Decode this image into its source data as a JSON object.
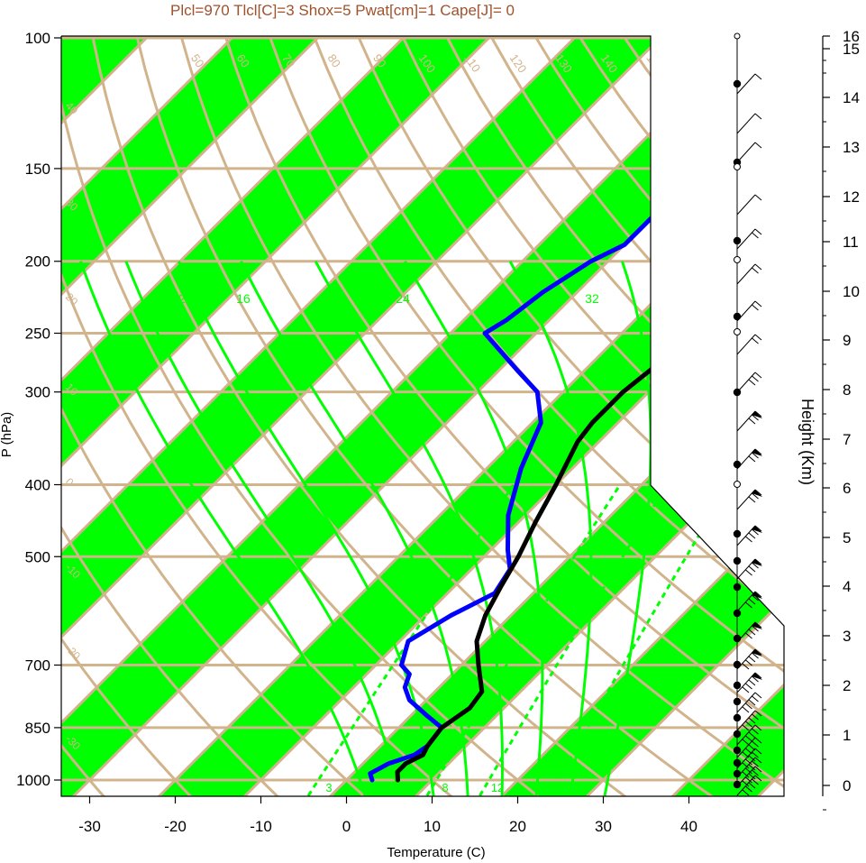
{
  "chart_data": {
    "type": "skew-t",
    "title": "Plcl=970 Tlcl[C]=3 Shox=5 Pwat[cm]=1 Cape[J]= 0",
    "xlabel": "Temperature (C)",
    "ylabel": "P (hPa)",
    "height_label": "Height (Km)",
    "x_ticks": [
      -30,
      -20,
      -10,
      0,
      10,
      20,
      30,
      40
    ],
    "p_ticks": [
      100,
      150,
      200,
      250,
      300,
      400,
      500,
      700,
      850,
      1000
    ],
    "height_ticks": [
      0,
      1,
      2,
      3,
      4,
      5,
      6,
      7,
      8,
      9,
      10,
      11,
      12,
      13,
      14,
      15,
      16
    ],
    "ylim": [
      1050,
      100
    ],
    "dry_adiabat_labels": [
      "50",
      "60",
      "70",
      "80",
      "90",
      "100",
      "110",
      "120",
      "130",
      "140",
      "150",
      "160"
    ],
    "isotherm_labels_left": [
      "40",
      "30",
      "20",
      "10",
      "0",
      "-10",
      "-20",
      "-30"
    ],
    "isotherm_labels_right": [
      "30",
      "20",
      "10",
      "0",
      "10",
      "20",
      "30"
    ],
    "moist_adiabat_labels": [
      "12",
      "16",
      "24",
      "32"
    ],
    "mixing_ratio_labels": [
      "3",
      "8",
      "12"
    ],
    "series": [
      {
        "name": "temperature",
        "points": [
          [
            1000,
            6
          ],
          [
            975,
            5
          ],
          [
            950,
            5
          ],
          [
            925,
            6
          ],
          [
            900,
            5.5
          ],
          [
            850,
            5
          ],
          [
            800,
            6
          ],
          [
            760,
            5.5
          ],
          [
            700,
            2
          ],
          [
            650,
            -1
          ],
          [
            600,
            -3
          ],
          [
            550,
            -4.5
          ],
          [
            500,
            -6
          ],
          [
            450,
            -8
          ],
          [
            400,
            -10
          ],
          [
            350,
            -12.5
          ],
          [
            330,
            -13
          ],
          [
            300,
            -13
          ],
          [
            270,
            -12
          ],
          [
            250,
            -10
          ],
          [
            225,
            -7
          ],
          [
            200,
            -4
          ],
          [
            180,
            -2
          ],
          [
            160,
            0
          ],
          [
            140,
            3
          ],
          [
            125,
            5
          ],
          [
            110,
            6
          ],
          [
            104,
            7
          ]
        ]
      },
      {
        "name": "dewpoint",
        "points": [
          [
            1000,
            3
          ],
          [
            980,
            2
          ],
          [
            950,
            3
          ],
          [
            925,
            5
          ],
          [
            900,
            5.5
          ],
          [
            850,
            5
          ],
          [
            820,
            2
          ],
          [
            780,
            -2
          ],
          [
            750,
            -4
          ],
          [
            720,
            -5
          ],
          [
            700,
            -7
          ],
          [
            650,
            -9
          ],
          [
            600,
            -7
          ],
          [
            560,
            -4.5
          ],
          [
            520,
            -5.5
          ],
          [
            490,
            -8
          ],
          [
            440,
            -12
          ],
          [
            380,
            -16
          ],
          [
            330,
            -19
          ],
          [
            300,
            -23
          ],
          [
            280,
            -28
          ],
          [
            250,
            -36
          ],
          [
            240,
            -35
          ],
          [
            220,
            -34
          ],
          [
            200,
            -32
          ],
          [
            190,
            -30
          ],
          [
            175,
            -30
          ],
          [
            150,
            -29
          ],
          [
            130,
            -25
          ],
          [
            115,
            -21
          ],
          [
            104,
            -16
          ]
        ]
      }
    ],
    "wind_barbs": "left column: 26 barbs, speed increasing with height",
    "colors": {
      "temperature": "#000000",
      "dewpoint": "#0000ff",
      "band": "#00ff00",
      "grid": "#d2b48c",
      "title": "#a0522d"
    }
  }
}
